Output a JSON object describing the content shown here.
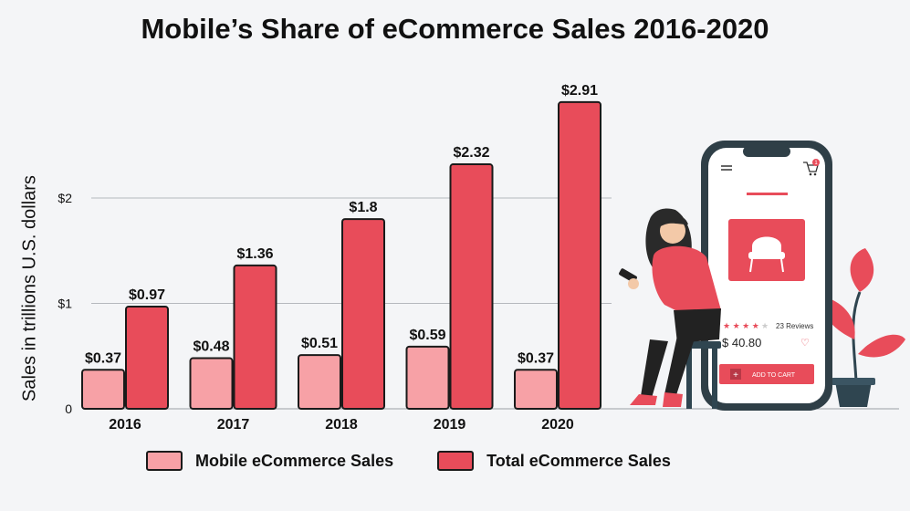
{
  "chart_data": {
    "type": "bar",
    "title": "Mobile’s Share of eCommerce Sales 2016-2020",
    "ylabel": "Sales in trillions U.S. dollars",
    "xlabel": "",
    "categories": [
      "2016",
      "2017",
      "2018",
      "2019",
      "2020"
    ],
    "series": [
      {
        "name": "Mobile eCommerce Sales",
        "values": [
          0.37,
          0.48,
          0.51,
          0.59,
          0.37
        ],
        "labels": [
          "$0.37",
          "$0.48",
          "$0.51",
          "$0.59",
          "$0.37"
        ],
        "color": "#f7a1a6"
      },
      {
        "name": "Total eCommerce  Sales",
        "values": [
          0.97,
          1.36,
          1.8,
          2.32,
          2.91
        ],
        "labels": [
          "$0.97",
          "$1.36",
          "$1.8",
          "$2.32",
          "$2.91"
        ],
        "color": "#e84c5a"
      }
    ],
    "yticks": [
      {
        "value": 0,
        "label": "0"
      },
      {
        "value": 1,
        "label": "$1"
      },
      {
        "value": 2,
        "label": "$2"
      }
    ],
    "ylim": [
      0,
      3
    ],
    "grid": true,
    "legend_position": "bottom"
  },
  "illustration": {
    "reviews_text": "23 Reviews",
    "price": "$ 40.80",
    "button_label": "ADD TO CART",
    "cart_badge": "1",
    "rating": 4,
    "rating_max": 5
  }
}
